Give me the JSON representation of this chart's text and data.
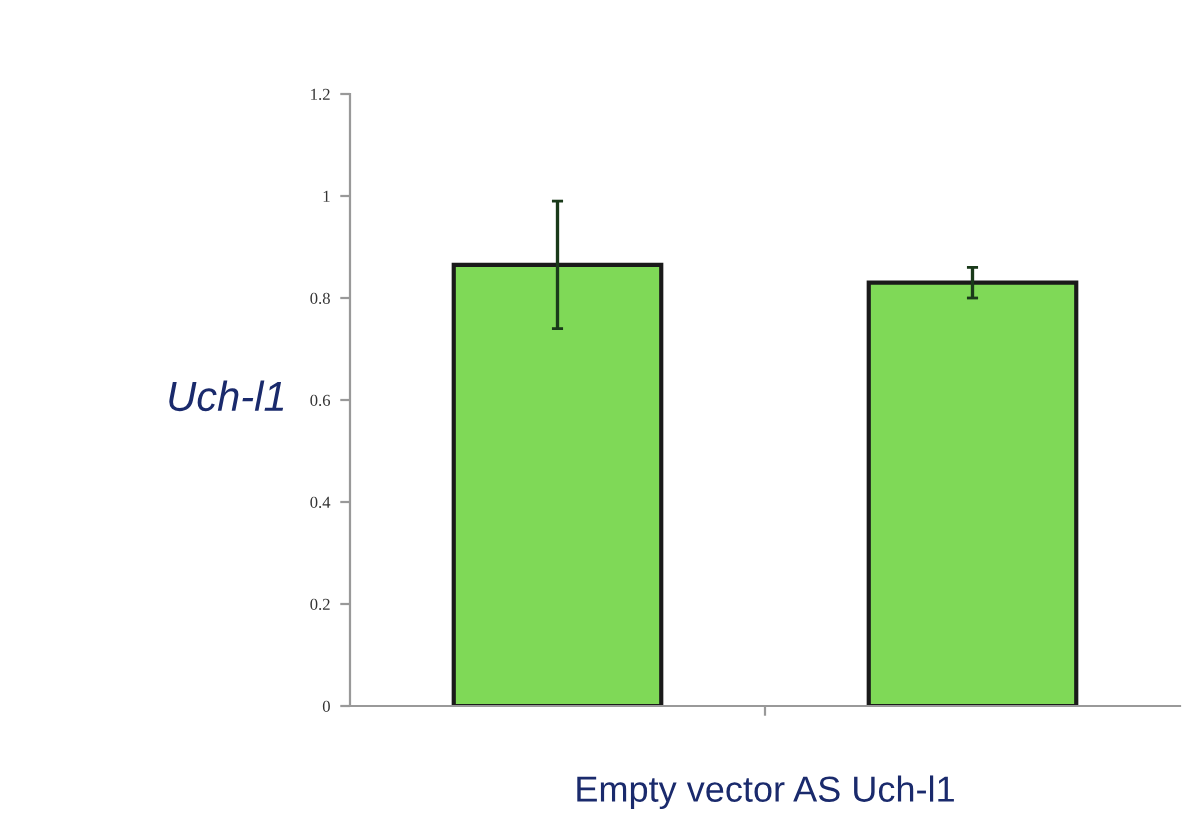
{
  "chart_data": {
    "type": "bar",
    "ylabel": "Uch-l1",
    "xlabel": "Empty vector AS Uch-l1",
    "categories": [
      null,
      null
    ],
    "values": [
      0.865,
      0.83
    ],
    "errors": [
      [
        0.74,
        0.99
      ],
      [
        0.8,
        0.86
      ]
    ],
    "color": "#7fd957",
    "ylim": [
      0,
      1.2
    ],
    "yticks": [
      0,
      0.2,
      0.4,
      0.6,
      0.8,
      1,
      1.2
    ],
    "grid": false,
    "legend": false
  }
}
